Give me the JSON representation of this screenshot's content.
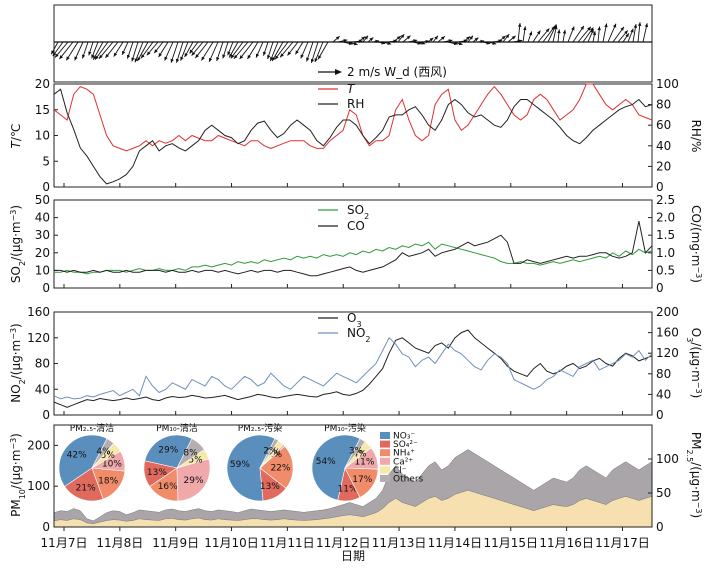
{
  "chart_data": [
    {
      "type": "vector",
      "panel": "wind",
      "legend": {
        "arrow_label": "2 m/s W_d (西风)"
      },
      "note": "wind barbs, western wind reference"
    },
    {
      "type": "line",
      "panel": "temperature-humidity",
      "ylabel_left": "T/℃",
      "ylabel_right": "RH/%",
      "ylim_left": [
        0,
        20
      ],
      "yticks_left": [
        "0",
        "5",
        "10",
        "15",
        "20"
      ],
      "ylim_right": [
        0,
        100
      ],
      "yticks_right": [
        "0",
        "20",
        "40",
        "60",
        "80",
        "100"
      ],
      "series": [
        {
          "name": "T",
          "color": "#e03030",
          "axis": "left",
          "values": [
            15,
            14,
            13,
            18,
            19.5,
            19,
            18,
            14,
            10,
            8,
            7.5,
            7,
            7.5,
            8,
            9,
            8,
            9,
            8.5,
            9,
            10,
            9,
            10,
            9.5,
            9,
            9,
            10,
            9.5,
            9,
            8.5,
            8,
            9,
            9,
            8,
            7.5,
            8,
            8.5,
            9,
            9,
            9,
            8,
            7.5,
            7.5,
            9,
            10,
            11,
            15,
            14,
            10,
            8,
            9,
            9,
            10,
            15,
            17,
            13,
            10,
            9,
            10,
            16,
            18,
            19,
            13,
            11,
            12,
            14,
            16,
            18,
            19.5,
            18,
            16,
            14,
            13,
            14,
            17,
            18,
            17,
            15,
            13,
            14,
            15,
            17,
            20,
            20,
            18,
            16,
            15,
            16,
            17,
            16,
            14,
            13.5,
            13
          ]
        },
        {
          "name": "RH",
          "color": "#222222",
          "axis": "right",
          "values": [
            90,
            95,
            72,
            56,
            38,
            30,
            20,
            10,
            3,
            5,
            8,
            12,
            20,
            35,
            40,
            45,
            35,
            40,
            42,
            38,
            35,
            40,
            45,
            55,
            60,
            55,
            50,
            48,
            42,
            45,
            55,
            62,
            64,
            55,
            48,
            52,
            60,
            65,
            60,
            55,
            45,
            40,
            48,
            58,
            65,
            65,
            60,
            50,
            42,
            48,
            55,
            68,
            70,
            70,
            75,
            78,
            70,
            60,
            55,
            65,
            80,
            85,
            80,
            72,
            68,
            70,
            65,
            60,
            58,
            65,
            78,
            85,
            85,
            80,
            75,
            70,
            65,
            58,
            50,
            45,
            42,
            48,
            55,
            60,
            65,
            70,
            75,
            78,
            80,
            85,
            78,
            80
          ]
        }
      ],
      "ticks_x": [
        "11月7日",
        "11月8日",
        "11月9日",
        "11月10日",
        "11月11日",
        "11月12日",
        "11月13日",
        "11月14日",
        "11月15日",
        "11月16日",
        "11月17日"
      ]
    },
    {
      "type": "line",
      "panel": "SO2-CO",
      "ylabel_left": "SO2/(μg·m⁻³)",
      "ylabel_right": "CO/(mg·m⁻³)",
      "ylim_left": [
        0,
        50
      ],
      "yticks_left": [
        "0",
        "10",
        "20",
        "30",
        "40",
        "50"
      ],
      "ylim_right": [
        0,
        2.5
      ],
      "yticks_right": [
        "0",
        "0.5",
        "1.0",
        "1.5",
        "2.0",
        "2.5"
      ],
      "series": [
        {
          "name": "SO₂",
          "color": "#2e9a3a",
          "axis": "left",
          "values": [
            9,
            9,
            10,
            9,
            9,
            8,
            9,
            9,
            10,
            10,
            10,
            9,
            10,
            11,
            10,
            10,
            11,
            10,
            10,
            11,
            10,
            12,
            12,
            13,
            12,
            13,
            14,
            13,
            15,
            14,
            15,
            14,
            16,
            15,
            16,
            17,
            16,
            18,
            17,
            18,
            17,
            19,
            18,
            19,
            18,
            20,
            19,
            21,
            20,
            22,
            21,
            23,
            22,
            24,
            23,
            25,
            24,
            26,
            22,
            25,
            24,
            23,
            22,
            21,
            20,
            19,
            18,
            17,
            15,
            14,
            14,
            15,
            14,
            14,
            13,
            14,
            15,
            14,
            15,
            16,
            15,
            16,
            17,
            18,
            17,
            20,
            18,
            21,
            19,
            22,
            20,
            21
          ]
        },
        {
          "name": "CO",
          "color": "#222222",
          "axis": "right",
          "values": [
            0.5,
            0.5,
            0.45,
            0.5,
            0.45,
            0.45,
            0.5,
            0.45,
            0.5,
            0.45,
            0.45,
            0.5,
            0.45,
            0.45,
            0.5,
            0.5,
            0.5,
            0.45,
            0.5,
            0.45,
            0.45,
            0.5,
            0.45,
            0.5,
            0.5,
            0.45,
            0.5,
            0.45,
            0.4,
            0.45,
            0.5,
            0.45,
            0.5,
            0.5,
            0.45,
            0.5,
            0.5,
            0.45,
            0.4,
            0.35,
            0.35,
            0.4,
            0.45,
            0.5,
            0.55,
            0.6,
            0.5,
            0.45,
            0.5,
            0.55,
            0.6,
            0.7,
            0.8,
            1.0,
            0.9,
            0.95,
            1.0,
            1.1,
            0.9,
            1.0,
            1.05,
            1.1,
            1.2,
            1.3,
            1.2,
            1.25,
            1.3,
            1.4,
            1.5,
            1.3,
            0.7,
            0.7,
            0.8,
            0.75,
            0.7,
            0.75,
            0.8,
            0.85,
            0.9,
            0.85,
            0.9,
            0.9,
            0.95,
            1.0,
            1.0,
            0.9,
            0.85,
            0.9,
            1.0,
            1.9,
            1.0,
            1.2
          ]
        }
      ]
    },
    {
      "type": "line",
      "panel": "NO2-O3",
      "ylabel_left": "NO2/(μg·m⁻³)",
      "ylabel_right": "O3/(μg·m⁻³)",
      "ylim_left": [
        0,
        160
      ],
      "yticks_left": [
        "0",
        "40",
        "80",
        "120",
        "160"
      ],
      "ylim_right": [
        0,
        200
      ],
      "yticks_right": [
        "0",
        "40",
        "80",
        "120",
        "160",
        "200"
      ],
      "series": [
        {
          "name": "O₃",
          "color": "#222222",
          "axis": "right",
          "values": [
            25,
            20,
            15,
            20,
            25,
            30,
            28,
            32,
            30,
            28,
            30,
            33,
            30,
            32,
            35,
            30,
            28,
            33,
            36,
            34,
            35,
            38,
            36,
            33,
            34,
            36,
            38,
            34,
            30,
            33,
            36,
            40,
            38,
            35,
            33,
            36,
            38,
            40,
            38,
            36,
            35,
            40,
            42,
            45,
            40,
            38,
            42,
            48,
            60,
            75,
            90,
            120,
            145,
            150,
            140,
            130,
            125,
            120,
            135,
            140,
            130,
            150,
            160,
            165,
            150,
            140,
            130,
            120,
            110,
            95,
            85,
            80,
            75,
            90,
            100,
            85,
            80,
            85,
            95,
            100,
            90,
            95,
            105,
            110,
            100,
            95,
            110,
            120,
            115,
            105,
            110,
            115
          ]
        },
        {
          "name": "NO₂",
          "color": "#7090c0",
          "axis": "left",
          "values": [
            30,
            25,
            28,
            25,
            26,
            30,
            28,
            32,
            35,
            38,
            30,
            35,
            40,
            30,
            60,
            45,
            35,
            40,
            50,
            45,
            40,
            55,
            50,
            45,
            60,
            55,
            45,
            40,
            50,
            60,
            55,
            45,
            50,
            65,
            55,
            45,
            40,
            50,
            60,
            55,
            50,
            45,
            55,
            65,
            60,
            55,
            50,
            60,
            70,
            80,
            100,
            120,
            110,
            95,
            90,
            75,
            85,
            90,
            80,
            95,
            110,
            100,
            95,
            85,
            75,
            70,
            85,
            95,
            90,
            80,
            55,
            50,
            45,
            40,
            45,
            55,
            60,
            70,
            65,
            60,
            75,
            80,
            85,
            70,
            75,
            80,
            85,
            95,
            90,
            100,
            85,
            95
          ]
        }
      ]
    },
    {
      "type": "area",
      "panel": "PM",
      "ylabel_left": "PM10/(μg·m⁻³)",
      "ylabel_right": "PM2.5/(μg·m⁻³)",
      "ylim_left": [
        0,
        250
      ],
      "yticks_left": [
        "0",
        "100",
        "200"
      ],
      "ylim_right": [
        0,
        250
      ],
      "yticks_right": [
        "0",
        "50",
        "100"
      ],
      "xlabel": "日期",
      "series": [
        {
          "name": "PM10",
          "color": "#aaa5a8",
          "values": [
            35,
            40,
            38,
            45,
            40,
            20,
            15,
            25,
            35,
            40,
            38,
            30,
            35,
            42,
            40,
            38,
            36,
            42,
            44,
            40,
            38,
            42,
            45,
            40,
            38,
            42,
            40,
            38,
            35,
            40,
            44,
            42,
            40,
            38,
            40,
            42,
            40,
            38,
            36,
            38,
            40,
            42,
            45,
            50,
            55,
            60,
            55,
            50,
            60,
            70,
            90,
            130,
            150,
            130,
            120,
            110,
            130,
            150,
            160,
            140,
            150,
            170,
            180,
            190,
            180,
            170,
            160,
            150,
            140,
            130,
            120,
            110,
            100,
            90,
            100,
            110,
            120,
            115,
            110,
            120,
            140,
            150,
            140,
            130,
            120,
            140,
            150,
            160,
            150,
            140,
            150,
            160
          ]
        },
        {
          "name": "PM2.5",
          "color": "#f6e0b0",
          "values": [
            15,
            18,
            16,
            20,
            18,
            10,
            8,
            12,
            16,
            18,
            17,
            14,
            16,
            20,
            18,
            17,
            16,
            20,
            21,
            18,
            17,
            20,
            22,
            18,
            17,
            20,
            18,
            17,
            16,
            18,
            20,
            20,
            18,
            17,
            18,
            20,
            18,
            17,
            16,
            17,
            18,
            20,
            22,
            25,
            28,
            30,
            28,
            25,
            30,
            35,
            45,
            60,
            70,
            60,
            55,
            50,
            60,
            70,
            75,
            65,
            70,
            80,
            85,
            90,
            85,
            80,
            75,
            70,
            65,
            60,
            55,
            50,
            45,
            40,
            45,
            50,
            55,
            52,
            50,
            55,
            65,
            70,
            65,
            60,
            55,
            65,
            70,
            75,
            70,
            65,
            70,
            75
          ]
        }
      ]
    },
    {
      "type": "pie",
      "panel": "composition",
      "legend": [
        "NO₃⁻",
        "SO₄²⁻",
        "NH₄⁺",
        "Ca²⁺",
        "Cl⁻",
        "Others"
      ],
      "colors": [
        "#5a8fbd",
        "#e06a5e",
        "#f08c6a",
        "#f0a8aa",
        "#f6e8a8",
        "#b4aeb0"
      ],
      "pies": [
        {
          "label": "PM₂.₅-清洁",
          "values": [
            42,
            21,
            18,
            10,
            5,
            4
          ],
          "labels": [
            "42%",
            "21%",
            "18%",
            "10%",
            "5%",
            "4%"
          ]
        },
        {
          "label": "PM₁₀-清洁",
          "values": [
            29,
            13,
            16,
            29,
            5,
            8
          ],
          "labels": [
            "29%",
            "13%",
            "16%",
            "29%",
            "5%",
            "8%"
          ]
        },
        {
          "label": "PM₂.₅-污染",
          "values": [
            59,
            13,
            22,
            1,
            3,
            2
          ],
          "labels": [
            "59%",
            "13%",
            "22%",
            "1%",
            "3%",
            "2%"
          ]
        },
        {
          "label": "PM₁₀-污染",
          "values": [
            54,
            11,
            17,
            11,
            4,
            3
          ],
          "labels": [
            "54%",
            "11%",
            "17%",
            "11%",
            "4%",
            "3%"
          ]
        }
      ]
    }
  ]
}
